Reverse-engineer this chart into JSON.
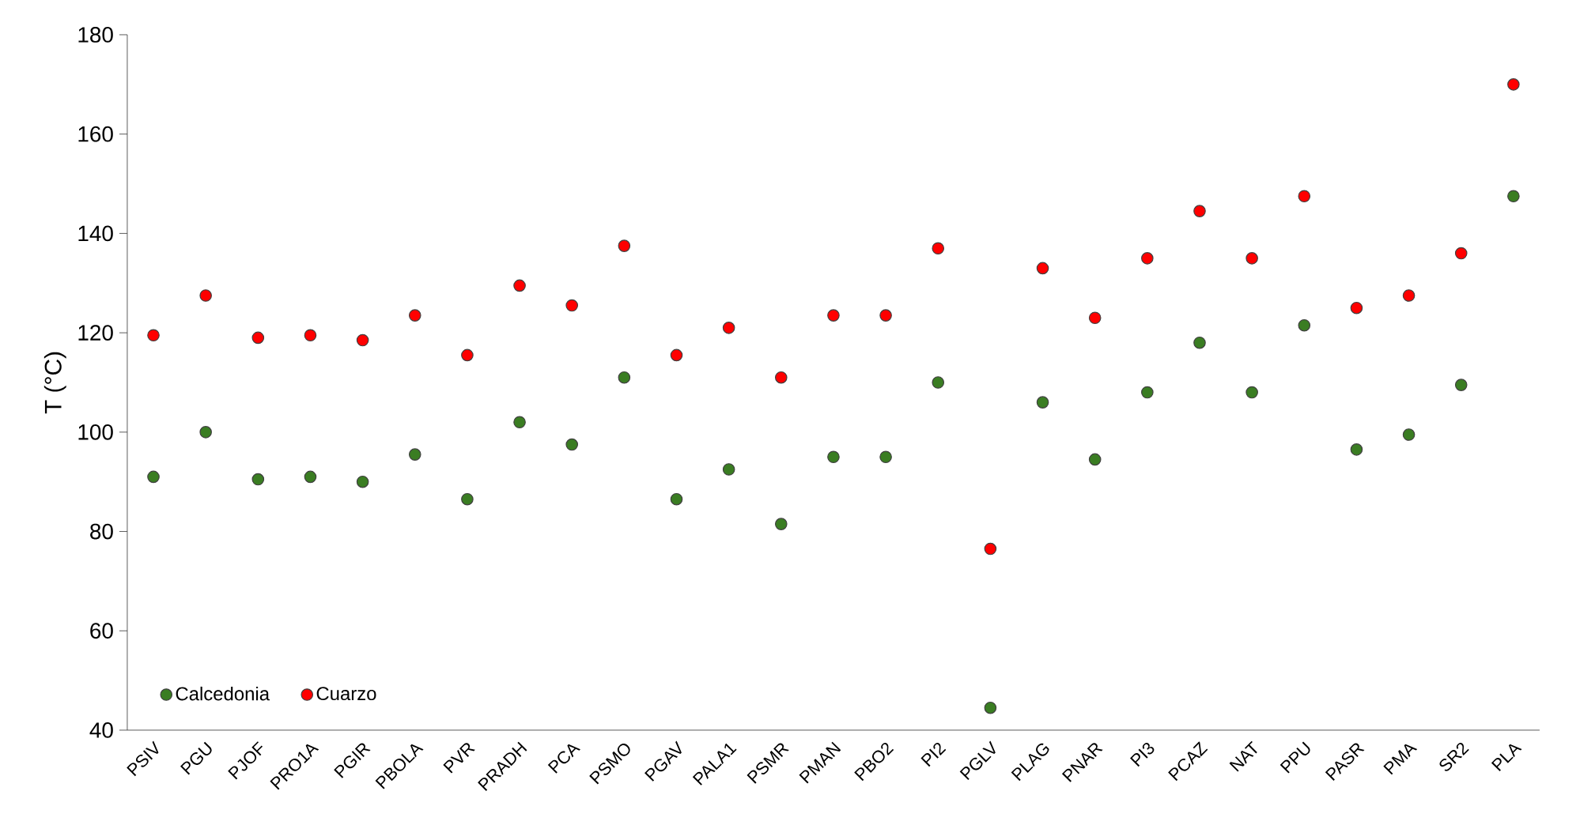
{
  "chart_data": {
    "type": "scatter",
    "ylabel": "T (°C)",
    "categories": [
      "PSIV",
      "PGU",
      "PJOF",
      "PRO1A",
      "PGIR",
      "PBOLA",
      "PVR",
      "PRADH",
      "PCA",
      "PSMO",
      "PGAV",
      "PALA1",
      "PSMR",
      "PMAN",
      "PBO2",
      "PI2",
      "PGLV",
      "PLAG",
      "PNAR",
      "PI3",
      "PCAZ",
      "NAT",
      "PPU",
      "PASR",
      "PMA",
      "SR2",
      "PLA"
    ],
    "series": [
      {
        "name": "Calcedonia",
        "color": "#3a7d22",
        "values": [
          91,
          100,
          90.5,
          91,
          90,
          95.5,
          86.5,
          102,
          97.5,
          111,
          86.5,
          92.5,
          81.5,
          95,
          95,
          110,
          44.5,
          106,
          94.5,
          108,
          118,
          108,
          121.5,
          96.5,
          99.5,
          109.5,
          147.5
        ]
      },
      {
        "name": "Cuarzo",
        "color": "#ff0000",
        "values": [
          119.5,
          127.5,
          119,
          119.5,
          118.5,
          123.5,
          115.5,
          129.5,
          125.5,
          137.5,
          115.5,
          121,
          111,
          123.5,
          123.5,
          137,
          76.5,
          133,
          123,
          135,
          144.5,
          135,
          147.5,
          125,
          127.5,
          136,
          170
        ]
      }
    ],
    "ylim": [
      40,
      180
    ],
    "yticks": [
      40,
      60,
      80,
      100,
      120,
      140,
      160,
      180
    ],
    "marker": "circle",
    "legend": "bottom left"
  }
}
